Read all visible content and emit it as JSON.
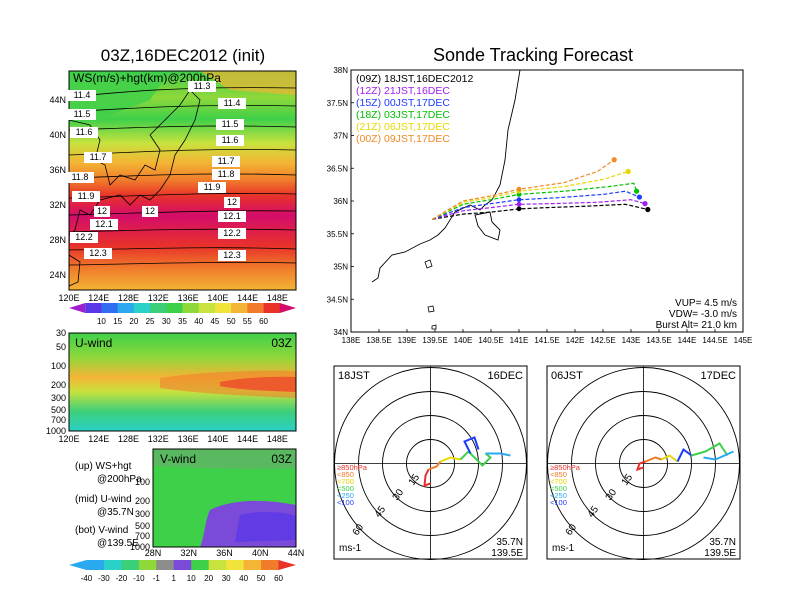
{
  "left_title": "03Z,16DEC2012 (init)",
  "right_title": "Sonde Tracking Forecast",
  "colors": {
    "wind_palette": [
      "#9f1fd0",
      "#5a37e6",
      "#2f6ef0",
      "#2aa9f0",
      "#2ad1c8",
      "#3ccf7a",
      "#3fd04a",
      "#8fd83a",
      "#c8e23e",
      "#f0e43a",
      "#f4b435",
      "#f07b2b",
      "#e8322a",
      "#d40c6b"
    ],
    "diverge_palette": [
      "#2aa9f0",
      "#2ad1c8",
      "#3ccf7a",
      "#8fd83a",
      "#8c8c8c",
      "#7c4ad9",
      "#3fd04a",
      "#c8e23e",
      "#f0e43a",
      "#f4b435",
      "#f07b2b",
      "#e8322a"
    ]
  },
  "chart_data": [
    {
      "type": "heatmap",
      "title": "WS(m/s)+hgt(km)@200hPa",
      "x_ticks": [
        "120E",
        "124E",
        "128E",
        "132E",
        "136E",
        "140E",
        "144E",
        "148E"
      ],
      "y_ticks": [
        "44N",
        "40N",
        "36N",
        "32N",
        "28N",
        "24N"
      ],
      "contour_labels": [
        "11.3",
        "11.4",
        "11.4",
        "11.5",
        "11.5",
        "11.6",
        "11.6",
        "11.7",
        "11.7",
        "11.8",
        "11.8",
        "11.9",
        "11.9",
        "12",
        "12",
        "12",
        "12.1",
        "12.1",
        "12.2",
        "12.2",
        "12.3",
        "12.3"
      ],
      "colorbar_ticks": [
        "10",
        "15",
        "20",
        "25",
        "30",
        "35",
        "40",
        "45",
        "50",
        "55",
        "60"
      ]
    },
    {
      "type": "heatmap",
      "title": "U-wind",
      "time_label": "03Z",
      "x_ticks": [
        "120E",
        "124E",
        "128E",
        "132E",
        "136E",
        "140E",
        "144E",
        "148E"
      ],
      "y_ticks": [
        "30",
        "50",
        "100",
        "200",
        "300",
        "500",
        "700",
        "1000"
      ]
    },
    {
      "type": "heatmap",
      "title": "V-wind",
      "time_label": "03Z",
      "x_ticks": [
        "28N",
        "32N",
        "36N",
        "40N",
        "44N"
      ],
      "y_ticks": [
        "100",
        "200",
        "300",
        "500",
        "700",
        "1000"
      ],
      "colorbar_ticks": [
        "-40",
        "-30",
        "-20",
        "-10",
        "-1",
        "1",
        "10",
        "20",
        "30",
        "40",
        "50",
        "60"
      ]
    },
    {
      "type": "line",
      "title": "Sonde Tracking Forecast",
      "x_ticks": [
        "138E",
        "138.5E",
        "139E",
        "139.5E",
        "140E",
        "140.5E",
        "141E",
        "141.5E",
        "142E",
        "142.5E",
        "143E",
        "143.5E",
        "144E",
        "144.5E",
        "145E"
      ],
      "y_ticks": [
        "38N",
        "37.5N",
        "37N",
        "36.5N",
        "36N",
        "35.5N",
        "35N",
        "34.5N",
        "34N"
      ],
      "xlim": [
        138,
        145
      ],
      "ylim": [
        34,
        38
      ],
      "series": [
        {
          "name": "(09Z) 18JST,16DEC2012",
          "color": "#000000",
          "points": [
            [
              139.45,
              35.72
            ],
            [
              140.0,
              35.8
            ],
            [
              140.5,
              35.83
            ],
            [
              141.0,
              35.88
            ],
            [
              141.5,
              35.9
            ],
            [
              142.2,
              35.92
            ],
            [
              142.9,
              35.95
            ],
            [
              143.3,
              35.87
            ]
          ]
        },
        {
          "name": "(12Z) 21JST,16DEC",
          "color": "#a020f0",
          "points": [
            [
              139.45,
              35.72
            ],
            [
              140.0,
              35.85
            ],
            [
              140.5,
              35.9
            ],
            [
              141.0,
              35.95
            ],
            [
              141.6,
              35.96
            ],
            [
              142.4,
              35.98
            ],
            [
              143.0,
              36.02
            ],
            [
              143.25,
              35.96
            ]
          ]
        },
        {
          "name": "(15Z) 00JST,17DEC",
          "color": "#1e3cff",
          "points": [
            [
              139.45,
              35.72
            ],
            [
              140.0,
              35.9
            ],
            [
              140.5,
              35.96
            ],
            [
              141.0,
              36.02
            ],
            [
              141.7,
              36.05
            ],
            [
              142.5,
              36.1
            ],
            [
              142.9,
              36.15
            ],
            [
              143.15,
              36.06
            ]
          ]
        },
        {
          "name": "(18Z) 03JST,17DEC",
          "color": "#00c000",
          "points": [
            [
              139.45,
              35.72
            ],
            [
              140.0,
              35.95
            ],
            [
              140.5,
              36.02
            ],
            [
              141.0,
              36.1
            ],
            [
              141.8,
              36.15
            ],
            [
              142.6,
              36.22
            ],
            [
              143.05,
              36.27
            ],
            [
              143.1,
              36.15
            ]
          ]
        },
        {
          "name": "(21Z) 06JST,17DEC",
          "color": "#e6d800",
          "points": [
            [
              139.45,
              35.72
            ],
            [
              140.0,
              35.98
            ],
            [
              140.5,
              36.05
            ],
            [
              141.0,
              36.15
            ],
            [
              141.8,
              36.22
            ],
            [
              142.5,
              36.33
            ],
            [
              142.95,
              36.45
            ]
          ]
        },
        {
          "name": "(00Z) 09JST,17DEC",
          "color": "#f08a24",
          "points": [
            [
              139.45,
              35.72
            ],
            [
              140.0,
              36.0
            ],
            [
              140.5,
              36.08
            ],
            [
              141.0,
              36.18
            ],
            [
              141.8,
              36.28
            ],
            [
              142.4,
              36.45
            ],
            [
              142.7,
              36.63
            ]
          ]
        }
      ],
      "params": [
        "VUP= 4.5 m/s",
        "VDW= -3.0 m/s",
        "Burst Alt= 21.0 km"
      ]
    },
    {
      "type": "scatter",
      "title": "18JST",
      "date_label": "16DEC",
      "ring_labels": [
        "15",
        "30",
        "45",
        "60"
      ],
      "legend": [
        "≥850hPa",
        "<850",
        "<700",
        "<500",
        "<250",
        "<100"
      ],
      "location": [
        "35.7N",
        "139.5E"
      ],
      "units": "ms-1"
    },
    {
      "type": "scatter",
      "title": "06JST",
      "date_label": "17DEC",
      "ring_labels": [
        "15",
        "30",
        "45",
        "60"
      ],
      "legend": [
        "≥850hPa",
        "<850",
        "<700",
        "<500",
        "<250",
        "<100"
      ],
      "location": [
        "35.7N",
        "139.5E"
      ],
      "units": "ms-1"
    }
  ],
  "panel_notes": {
    "up": [
      "(up) WS+hgt",
      "@200hPa"
    ],
    "mid": [
      "(mid) U-wind",
      "@35.7N"
    ],
    "bot": [
      "(bot) V-wind",
      "@139.5E"
    ]
  }
}
